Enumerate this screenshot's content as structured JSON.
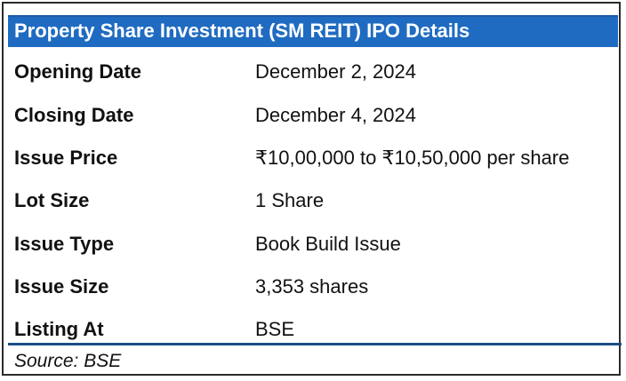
{
  "title": "Property Share Investment (SM REIT) IPO Details",
  "rows": [
    {
      "label": "Opening Date",
      "value": "December 2, 2024"
    },
    {
      "label": "Closing Date",
      "value": "December 4, 2024"
    },
    {
      "label": "Issue Price",
      "value": "₹10,00,000 to ₹10,50,000 per share"
    },
    {
      "label": "Lot Size",
      "value": "1 Share"
    },
    {
      "label": "Issue Type",
      "value": "Book Build Issue"
    },
    {
      "label": "Issue Size",
      "value": "3,353 shares"
    },
    {
      "label": "Listing At",
      "value": "BSE"
    }
  ],
  "source": "Source: BSE",
  "colors": {
    "title_background": "#1f6bc1",
    "title_text": "#ffffff",
    "bottom_rule": "#1a4f86"
  }
}
